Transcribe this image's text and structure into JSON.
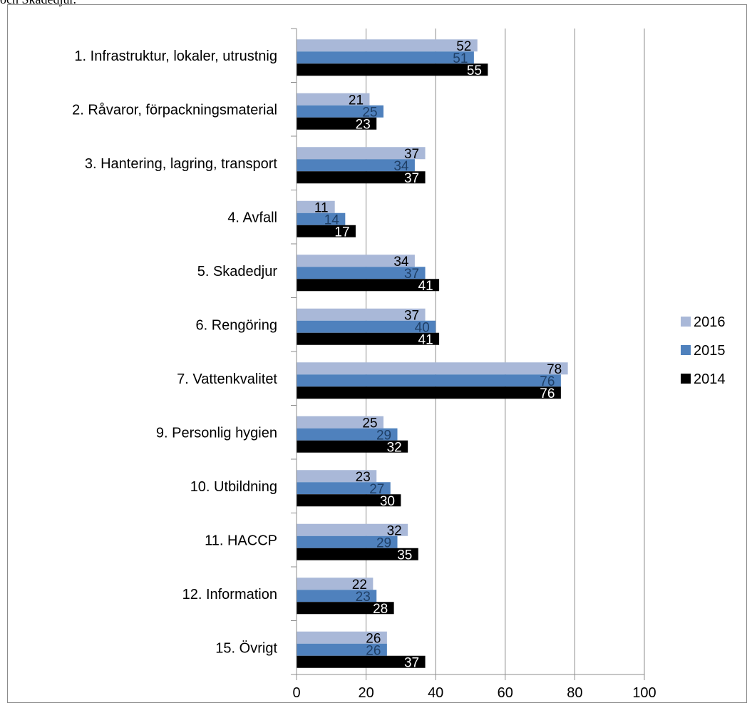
{
  "caption": "och Skadedjur.",
  "chart_data": {
    "type": "bar",
    "orientation": "horizontal",
    "categories": [
      "1. Infrastruktur, lokaler, utrustnig",
      "2. Råvaror, förpackningsmaterial",
      "3. Hantering, lagring, transport",
      "4. Avfall",
      "5. Skadedjur",
      "6. Rengöring",
      "7. Vattenkvalitet",
      "9. Personlig hygien",
      "10. Utbildning",
      "11. HACCP",
      "12. Information",
      "15. Övrigt"
    ],
    "series": [
      {
        "name": "2016",
        "color": "#a9b8d8",
        "label_color": "#000000",
        "values": [
          52,
          21,
          37,
          11,
          34,
          37,
          78,
          25,
          23,
          32,
          22,
          26
        ]
      },
      {
        "name": "2015",
        "color": "#4f81bd",
        "label_color": "#1f3f66",
        "values": [
          51,
          25,
          34,
          14,
          37,
          40,
          76,
          29,
          27,
          29,
          23,
          26
        ]
      },
      {
        "name": "2014",
        "color": "#000000",
        "label_color": "#ffffff",
        "values": [
          55,
          23,
          37,
          17,
          41,
          41,
          76,
          32,
          30,
          35,
          28,
          37
        ]
      }
    ],
    "xlim": [
      0,
      100
    ],
    "xticks": [
      0,
      20,
      40,
      60,
      80,
      100
    ],
    "grid": "vertical",
    "legend_position": "right",
    "legend_order": [
      "2016",
      "2015",
      "2014"
    ]
  }
}
